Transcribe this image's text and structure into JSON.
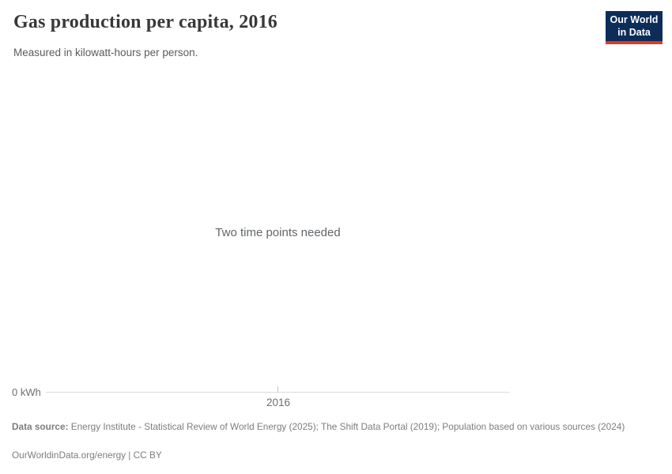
{
  "header": {
    "title": "Gas production per capita, 2016",
    "subtitle": "Measured in kilowatt-hours per person.",
    "logo": {
      "line1": "Our World",
      "line2": "in Data",
      "bg_color": "#0d2d59",
      "bar_color": "#dc3a2a",
      "text_color": "#ffffff"
    }
  },
  "chart": {
    "message": "Two time points needed",
    "axis": {
      "y_label": "0 kWh",
      "x_tick_label": "2016",
      "line_color": "#dbdbdb",
      "tick_color": "#c6c6c6"
    }
  },
  "chart_data": {
    "type": "line",
    "title": "Gas production per capita, 2016",
    "subtitle": "Measured in kilowatt-hours per person.",
    "series": [],
    "x": [],
    "x_ticks": [
      "2016"
    ],
    "y_ticks": [
      "0 kWh"
    ],
    "ylim_bottom_label": "0 kWh",
    "annotation": "Two time points needed",
    "grid": false,
    "legend": false
  },
  "footer": {
    "datasource_label": "Data source:",
    "datasource_text": "Energy Institute - Statistical Review of World Energy (2025); The Shift Data Portal (2019); Population based on various sources (2024)",
    "citation": "OurWorldinData.org/energy | CC BY"
  }
}
